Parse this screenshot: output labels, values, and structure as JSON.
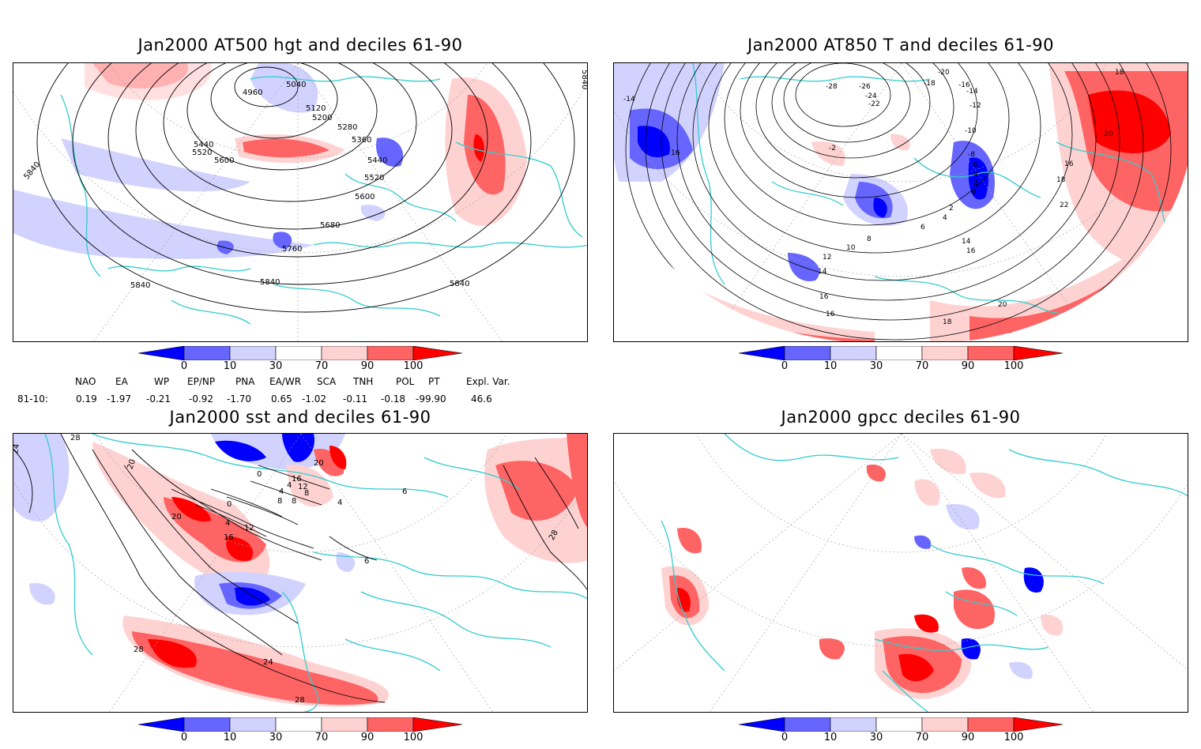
{
  "panels": [
    {
      "title": "Jan2000 AT500 hgt and deciles 61-90",
      "contour_labels": [
        "4960",
        "5040",
        "5120",
        "5200",
        "5280",
        "5360",
        "5440",
        "5520",
        "5600",
        "5680",
        "5760",
        "5840",
        "5440",
        "5520",
        "5600",
        "5840",
        "5840",
        "5840",
        "5840"
      ]
    },
    {
      "title": "Jan2000 AT850 T and deciles 61-90",
      "contour_labels": [
        "-14",
        "16",
        "-28",
        "-26",
        "-24",
        "-22",
        "-20",
        "-18",
        "-16",
        "-14",
        "-12",
        "-10",
        "-8",
        "-6",
        "-4",
        "-2",
        "0",
        "2",
        "4",
        "6",
        "8",
        "10",
        "12",
        "14",
        "16",
        "18",
        "20",
        "22",
        "14",
        "16",
        "16",
        "18",
        "20",
        "16",
        "18",
        "-2"
      ]
    },
    {
      "title": "Jan2000 sst and deciles 61-90",
      "contour_labels": [
        "28",
        "24",
        "20",
        "20",
        "16",
        "12",
        "8",
        "4",
        "0",
        "0",
        "4",
        "4",
        "8",
        "4",
        "20",
        "16",
        "12",
        "8",
        "6",
        "6",
        "28",
        "28",
        "24",
        "28"
      ]
    },
    {
      "title": "Jan2000 gpcc deciles 61-90"
    }
  ],
  "colorbar": {
    "labels": [
      "0",
      "10",
      "30",
      "70",
      "90",
      "100"
    ],
    "colors": [
      "#0000ff",
      "#6666ff",
      "#d2d2ff",
      "#ffffff",
      "#ffd2d2",
      "#ff6464",
      "#ff0000"
    ]
  },
  "indices": {
    "headers": [
      "NAO",
      "EA",
      "WP",
      "EP/NP",
      "PNA",
      "EA/WR",
      "SCA",
      "TNH",
      "POL",
      "PT",
      "Expl. Var."
    ],
    "period": "81-10:",
    "values": [
      "0.19",
      "-1.97",
      "-0.21",
      "-0.92",
      "-1.70",
      "0.65",
      "-1.02",
      "-0.11",
      "-0.18",
      "-99.90",
      "46.6"
    ]
  },
  "map_colors": {
    "coast": "#33cccc",
    "contour": "#000000",
    "grid": "#999999"
  }
}
